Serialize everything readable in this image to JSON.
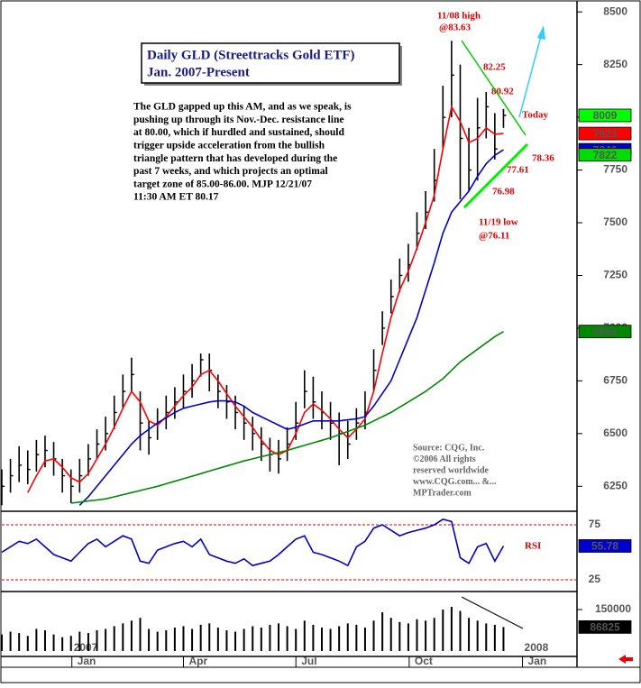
{
  "chart_data": {
    "type": "ohlc",
    "title": "Daily GLD (Streettracks Gold ETF)",
    "subtitle": "Jan. 2007-Present",
    "commentary": [
      "The GLD gapped up this AM, and as we speak, is",
      "pushing up through its Nov.-Dec. resistance line",
      "at 80.00, which if hurdled and sustained, should",
      "trigger upside acceleration from the bullish",
      "triangle pattern that has developed during the",
      "past 7 weeks, and which projects an optimal",
      "target zone of 85.00-86.00. MJP 12/21/07",
      "11:30 AM ET  80.17"
    ],
    "source": [
      "Source: CQG, Inc.",
      "©2006 All rights",
      "reserved worldwide",
      "www.CQG.com... &...",
      "MPTrader.com"
    ],
    "annotations": [
      "11/08 high",
      "@83.63",
      "82.25",
      "80.92",
      "Today",
      "78.36",
      "77.61",
      "76.98",
      "11/19 low",
      "@76.11"
    ],
    "x": [
      0,
      1,
      2,
      3,
      4,
      5,
      6,
      7,
      8,
      9,
      10,
      11,
      12,
      13,
      14,
      15,
      16,
      17,
      18,
      19,
      20,
      21,
      22,
      23,
      24,
      25,
      26,
      27,
      28,
      29,
      30,
      31,
      32,
      33,
      34,
      35,
      36,
      37,
      38,
      39,
      40,
      41,
      42,
      43,
      44,
      45,
      46,
      47,
      48,
      49,
      50,
      51,
      52,
      53,
      54,
      55,
      56,
      57,
      58
    ],
    "xlim": [
      0,
      66.5
    ],
    "xticks": [
      {
        "value": 8.1,
        "label": "Jan"
      },
      {
        "value": 21,
        "label": "Apr"
      },
      {
        "value": 34,
        "label": "Jul"
      },
      {
        "value": 47.1,
        "label": "Oct"
      },
      {
        "value": 60.2,
        "label": "Jan"
      }
    ],
    "year_labels": [
      {
        "value": 8.1,
        "label": "2007"
      },
      {
        "value": 60.2,
        "label": "2008"
      }
    ],
    "high": [
      6330,
      6380,
      6440,
      6420,
      6470,
      6490,
      6460,
      6380,
      6330,
      6380,
      6450,
      6520,
      6580,
      6680,
      6780,
      6860,
      6700,
      6560,
      6620,
      6680,
      6720,
      6780,
      6830,
      6880,
      6880,
      6780,
      6730,
      6680,
      6630,
      6580,
      6530,
      6480,
      6470,
      6530,
      6650,
      6800,
      6770,
      6700,
      6650,
      6600,
      6560,
      6620,
      6700,
      6900,
      7080,
      7230,
      7330,
      7400,
      7550,
      7650,
      7850,
      8150,
      8363,
      8250,
      7950,
      8092,
      8120,
      8020,
      8040
    ],
    "low": [
      6160,
      6220,
      6270,
      6260,
      6320,
      6340,
      6300,
      6220,
      6170,
      6220,
      6300,
      6380,
      6420,
      6520,
      6620,
      6700,
      6420,
      6400,
      6470,
      6520,
      6570,
      6620,
      6670,
      6770,
      6700,
      6620,
      6570,
      6520,
      6470,
      6420,
      6370,
      6320,
      6310,
      6370,
      6470,
      6620,
      6570,
      6520,
      6470,
      6350,
      6380,
      6470,
      6520,
      6700,
      6920,
      7070,
      7170,
      7220,
      7370,
      7470,
      7600,
      7850,
      8000,
      7611,
      7650,
      7700,
      7900,
      7800,
      7950
    ],
    "close": [
      6250,
      6300,
      6350,
      6330,
      6400,
      6420,
      6380,
      6300,
      6250,
      6300,
      6380,
      6450,
      6500,
      6600,
      6700,
      6780,
      6550,
      6480,
      6550,
      6600,
      6650,
      6700,
      6750,
      6850,
      6800,
      6700,
      6650,
      6600,
      6550,
      6500,
      6450,
      6400,
      6380,
      6450,
      6550,
      6700,
      6650,
      6600,
      6550,
      6500,
      6450,
      6550,
      6600,
      6800,
      7000,
      7150,
      7250,
      7300,
      7450,
      7550,
      7700,
      8000,
      8200,
      7900,
      7750,
      7950,
      8050,
      7850,
      8009
    ],
    "close_color": "#00ff00",
    "lines": [
      {
        "color": "#ff0000",
        "values": [
          null,
          null,
          null,
          6220,
          6300,
          6370,
          6380,
          6340,
          6290,
          6270,
          6310,
          6380,
          6450,
          6530,
          6620,
          6700,
          6650,
          6560,
          6540,
          6580,
          6630,
          6680,
          6720,
          6780,
          6800,
          6750,
          6690,
          6630,
          6580,
          6530,
          6470,
          6420,
          6400,
          6420,
          6500,
          6600,
          6640,
          6610,
          6570,
          6520,
          6480,
          6520,
          6570,
          6700,
          6880,
          7050,
          7180,
          7270,
          7380,
          7500,
          7630,
          7850,
          8050,
          7980,
          7880,
          7900,
          7950,
          7920,
          7923
        ]
      },
      {
        "color": "#0000cc",
        "values": [
          null,
          null,
          null,
          null,
          null,
          null,
          null,
          null,
          null,
          6160,
          6200,
          6250,
          6300,
          6350,
          6400,
          6450,
          6490,
          6520,
          6550,
          6575,
          6600,
          6620,
          6630,
          6640,
          6650,
          6655,
          6655,
          6650,
          6630,
          6600,
          6580,
          6560,
          6540,
          6520,
          6530,
          6545,
          6560,
          6560,
          6560,
          6560,
          6565,
          6570,
          6580,
          6630,
          6690,
          6750,
          6850,
          6950,
          7050,
          7180,
          7310,
          7450,
          7550,
          7600,
          7650,
          7720,
          7780,
          7820,
          7846
        ]
      },
      {
        "color": "#008800",
        "values": [
          null,
          null,
          null,
          null,
          null,
          null,
          null,
          null,
          6170,
          6175,
          6180,
          6185,
          6190,
          6200,
          6210,
          6220,
          6230,
          6240,
          6250,
          6262,
          6274,
          6286,
          6298,
          6310,
          6322,
          6334,
          6346,
          6358,
          6370,
          6380,
          6390,
          6400,
          6410,
          6420,
          6432,
          6444,
          6456,
          6468,
          6480,
          6495,
          6510,
          6525,
          6540,
          6560,
          6580,
          6600,
          6625,
          6650,
          6675,
          6700,
          6730,
          6760,
          6800,
          6840,
          6870,
          6900,
          6930,
          6960,
          6984
        ]
      }
    ],
    "extra_levels": [
      {
        "value": 7822,
        "color": "#00dd00"
      }
    ],
    "ylim": [
      6140,
      8535
    ],
    "yticks": [
      6250,
      6500,
      6750,
      7000,
      7250,
      7500,
      7750,
      8000,
      8250,
      8500
    ],
    "rsi": {
      "label": "RSI",
      "color": "#0000cc",
      "values": [
        50,
        55,
        60,
        58,
        62,
        55,
        48,
        45,
        42,
        50,
        58,
        62,
        55,
        60,
        65,
        62,
        42,
        40,
        52,
        55,
        58,
        60,
        55,
        62,
        48,
        45,
        42,
        40,
        44,
        38,
        40,
        42,
        48,
        55,
        62,
        65,
        50,
        48,
        45,
        42,
        38,
        55,
        60,
        72,
        75,
        70,
        65,
        68,
        70,
        72,
        75,
        80,
        78,
        45,
        40,
        55,
        58,
        42,
        55.78
      ],
      "ylim": [
        16,
        86.5
      ],
      "yticks": [
        25,
        75
      ]
    },
    "volume": {
      "color": "#000000",
      "values": [
        60000,
        70000,
        65000,
        55000,
        80000,
        75000,
        60000,
        50000,
        55000,
        70000,
        65000,
        75000,
        80000,
        90000,
        100000,
        110000,
        120000,
        80000,
        70000,
        75000,
        85000,
        90000,
        80000,
        95000,
        100000,
        85000,
        75000,
        70000,
        80000,
        90000,
        85000,
        95000,
        100000,
        90000,
        80000,
        110000,
        95000,
        85000,
        80000,
        90000,
        100000,
        95000,
        85000,
        110000,
        140000,
        120000,
        105000,
        100000,
        115000,
        110000,
        120000,
        150000,
        160000,
        145000,
        120000,
        110000,
        100000,
        95000,
        86825
      ],
      "ylim": [
        0,
        212000
      ],
      "yticks": [
        150000
      ]
    }
  }
}
